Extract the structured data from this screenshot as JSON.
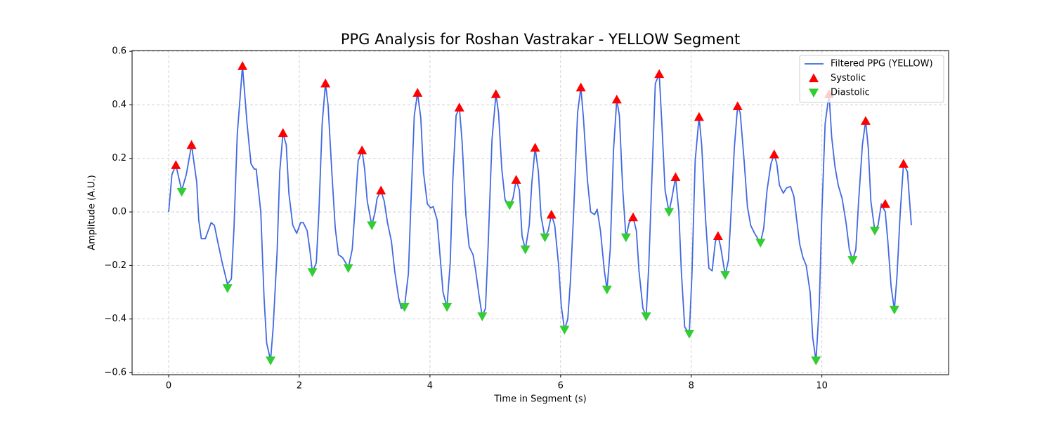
{
  "chart_data": {
    "type": "line",
    "title": "PPG Analysis for Roshan Vastrakar - YELLOW Segment",
    "xlabel": "Time in Segment (s)",
    "ylabel": "Amplitude (A.U.)",
    "xlim": [
      -0.56,
      11.94
    ],
    "ylim": [
      -0.608,
      0.603
    ],
    "xticks": [
      0,
      2,
      4,
      6,
      8,
      10
    ],
    "yticks": [
      {
        "value": -0.6,
        "label": "−0.6"
      },
      {
        "value": -0.4,
        "label": "−0.4"
      },
      {
        "value": -0.2,
        "label": "−0.2"
      },
      {
        "value": 0,
        "label": "0.0"
      },
      0.2,
      0.4,
      0.6
    ],
    "grid": true,
    "legend": "upper right",
    "series": [
      {
        "name": "Filtered PPG (YELLOW)",
        "type": "line",
        "color": "#4169e1",
        "x": [
          0,
          0.05,
          0.11,
          0.2,
          0.27,
          0.35,
          0.43,
          0.46,
          0.5,
          0.56,
          0.65,
          0.7,
          0.75,
          0.82,
          0.9,
          0.96,
          1.0,
          1.05,
          1.13,
          1.2,
          1.26,
          1.31,
          1.34,
          1.41,
          1.46,
          1.5,
          1.56,
          1.6,
          1.66,
          1.7,
          1.75,
          1.8,
          1.84,
          1.9,
          1.96,
          2.02,
          2.06,
          2.12,
          2.16,
          2.2,
          2.26,
          2.3,
          2.35,
          2.4,
          2.44,
          2.5,
          2.55,
          2.6,
          2.66,
          2.71,
          2.75,
          2.81,
          2.85,
          2.9,
          2.96,
          3.0,
          3.04,
          3.11,
          3.16,
          3.19,
          3.25,
          3.3,
          3.35,
          3.41,
          3.46,
          3.52,
          3.56,
          3.61,
          3.67,
          3.71,
          3.76,
          3.81,
          3.86,
          3.9,
          3.96,
          4.01,
          4.05,
          4.11,
          4.15,
          4.2,
          4.26,
          4.31,
          4.35,
          4.4,
          4.45,
          4.49,
          4.55,
          4.6,
          4.66,
          4.7,
          4.75,
          4.8,
          4.85,
          4.89,
          4.95,
          5.01,
          5.05,
          5.1,
          5.15,
          5.22,
          5.27,
          5.32,
          5.37,
          5.41,
          5.46,
          5.52,
          5.56,
          5.61,
          5.66,
          5.7,
          5.76,
          5.81,
          5.86,
          5.91,
          5.97,
          6.01,
          6.06,
          6.11,
          6.15,
          6.2,
          6.26,
          6.31,
          6.35,
          6.41,
          6.46,
          6.52,
          6.56,
          6.61,
          6.67,
          6.71,
          6.76,
          6.81,
          6.86,
          6.9,
          6.95,
          7.0,
          7.05,
          7.11,
          7.16,
          7.2,
          7.26,
          7.31,
          7.35,
          7.4,
          7.45,
          7.51,
          7.55,
          7.6,
          7.66,
          7.71,
          7.76,
          7.81,
          7.85,
          7.9,
          7.97,
          8.01,
          8.06,
          8.12,
          8.16,
          8.22,
          8.27,
          8.32,
          8.37,
          8.41,
          8.45,
          8.52,
          8.57,
          8.61,
          8.66,
          8.71,
          8.75,
          8.81,
          8.86,
          8.91,
          8.97,
          9.02,
          9.06,
          9.11,
          9.16,
          9.22,
          9.27,
          9.31,
          9.35,
          9.41,
          9.46,
          9.52,
          9.57,
          9.61,
          9.66,
          9.71,
          9.76,
          9.82,
          9.86,
          9.91,
          9.96,
          10.0,
          10.05,
          10.11,
          10.15,
          10.2,
          10.25,
          10.31,
          10.37,
          10.42,
          10.47,
          10.52,
          10.56,
          10.62,
          10.67,
          10.71,
          10.75,
          10.81,
          10.86,
          10.91,
          10.97,
          11.01,
          11.06,
          11.11,
          11.15,
          11.2,
          11.25,
          11.31,
          11.37
        ],
        "values": [
          0.0,
          0.14,
          0.175,
          0.08,
          0.14,
          0.25,
          0.11,
          -0.03,
          -0.1,
          -0.1,
          -0.04,
          -0.05,
          -0.11,
          -0.19,
          -0.27,
          -0.25,
          -0.06,
          0.29,
          0.545,
          0.33,
          0.18,
          0.16,
          0.16,
          0.0,
          -0.32,
          -0.49,
          -0.555,
          -0.43,
          -0.15,
          0.15,
          0.295,
          0.25,
          0.07,
          -0.05,
          -0.08,
          -0.04,
          -0.04,
          -0.07,
          -0.14,
          -0.225,
          -0.19,
          0.0,
          0.33,
          0.48,
          0.4,
          0.14,
          -0.06,
          -0.16,
          -0.17,
          -0.19,
          -0.21,
          -0.14,
          0.0,
          0.19,
          0.23,
          0.16,
          0.04,
          -0.05,
          0.0,
          0.05,
          0.08,
          0.04,
          -0.04,
          -0.11,
          -0.22,
          -0.32,
          -0.36,
          -0.355,
          -0.23,
          0.04,
          0.36,
          0.445,
          0.35,
          0.15,
          0.03,
          0.015,
          0.02,
          -0.03,
          -0.15,
          -0.3,
          -0.355,
          -0.19,
          0.12,
          0.36,
          0.39,
          0.27,
          -0.01,
          -0.13,
          -0.16,
          -0.22,
          -0.31,
          -0.39,
          -0.36,
          -0.13,
          0.27,
          0.44,
          0.37,
          0.16,
          0.045,
          0.025,
          0.05,
          0.12,
          0.08,
          -0.09,
          -0.14,
          -0.05,
          0.11,
          0.24,
          0.15,
          -0.015,
          -0.095,
          -0.07,
          -0.01,
          -0.05,
          -0.2,
          -0.35,
          -0.44,
          -0.4,
          -0.26,
          0.0,
          0.37,
          0.465,
          0.35,
          0.12,
          0.0,
          -0.01,
          0.01,
          -0.07,
          -0.22,
          -0.29,
          -0.14,
          0.23,
          0.42,
          0.36,
          0.09,
          -0.095,
          -0.04,
          -0.02,
          -0.07,
          -0.22,
          -0.36,
          -0.39,
          -0.2,
          0.14,
          0.48,
          0.515,
          0.33,
          0.08,
          0.0,
          0.06,
          0.13,
          0.0,
          -0.23,
          -0.43,
          -0.455,
          -0.24,
          0.19,
          0.355,
          0.25,
          -0.03,
          -0.21,
          -0.22,
          -0.11,
          -0.09,
          -0.13,
          -0.235,
          -0.18,
          0.0,
          0.24,
          0.395,
          0.37,
          0.19,
          0.02,
          -0.05,
          -0.08,
          -0.1,
          -0.115,
          -0.06,
          0.08,
          0.18,
          0.215,
          0.18,
          0.1,
          0.07,
          0.09,
          0.095,
          0.06,
          -0.02,
          -0.12,
          -0.17,
          -0.2,
          -0.3,
          -0.47,
          -0.555,
          -0.35,
          0.0,
          0.33,
          0.44,
          0.28,
          0.17,
          0.1,
          0.05,
          -0.04,
          -0.14,
          -0.18,
          -0.14,
          0.03,
          0.25,
          0.34,
          0.24,
          0.04,
          -0.07,
          -0.05,
          0.03,
          0.0,
          -0.11,
          -0.28,
          -0.365,
          -0.24,
          0.0,
          0.18,
          0.15,
          -0.05
        ]
      },
      {
        "name": "Systolic",
        "type": "scatter",
        "marker": "^",
        "color": "#ff0000",
        "x": [
          0.11,
          0.35,
          1.13,
          1.75,
          2.4,
          2.96,
          3.25,
          3.81,
          4.45,
          5.01,
          5.32,
          5.61,
          5.86,
          6.31,
          6.86,
          7.11,
          7.51,
          7.76,
          8.12,
          8.41,
          8.71,
          9.27,
          10.11,
          10.67,
          10.97,
          11.25
        ],
        "values": [
          0.175,
          0.25,
          0.545,
          0.295,
          0.48,
          0.23,
          0.08,
          0.445,
          0.39,
          0.44,
          0.12,
          0.24,
          -0.01,
          0.465,
          0.42,
          -0.02,
          0.515,
          0.13,
          0.355,
          -0.09,
          0.395,
          0.215,
          0.44,
          0.34,
          0.03,
          0.18
        ]
      },
      {
        "name": "Diastolic",
        "type": "scatter",
        "marker": "v",
        "color": "#32cd32",
        "x": [
          0.2,
          0.9,
          1.56,
          2.2,
          2.75,
          3.11,
          3.61,
          4.26,
          4.8,
          5.22,
          5.46,
          5.76,
          6.06,
          6.71,
          7.0,
          7.31,
          7.66,
          7.97,
          8.52,
          9.06,
          9.91,
          10.47,
          10.81,
          11.11
        ],
        "values": [
          0.075,
          -0.285,
          -0.555,
          -0.225,
          -0.21,
          -0.05,
          -0.355,
          -0.355,
          -0.39,
          0.025,
          -0.14,
          -0.095,
          -0.44,
          -0.29,
          -0.095,
          -0.39,
          0.0,
          -0.455,
          -0.235,
          -0.115,
          -0.555,
          -0.18,
          -0.07,
          -0.365
        ]
      }
    ]
  }
}
